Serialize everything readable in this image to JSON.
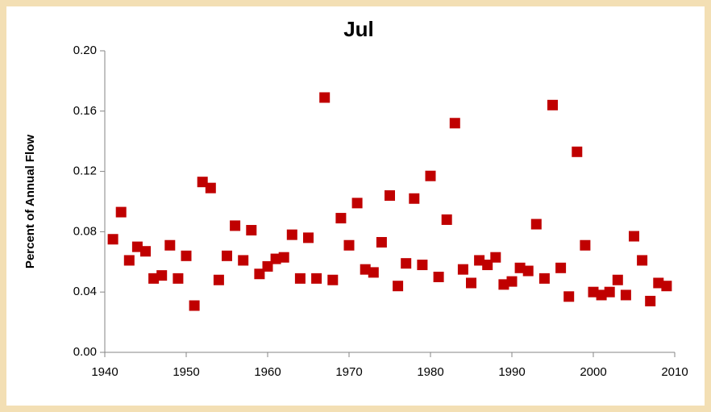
{
  "chart_data": {
    "type": "scatter",
    "title": "Jul",
    "ylabel": "Percent of Annual Flow",
    "series": [
      {
        "name": "Jul",
        "color": "#c00000",
        "x": [
          1941,
          1942,
          1943,
          1944,
          1945,
          1946,
          1947,
          1948,
          1949,
          1950,
          1951,
          1952,
          1953,
          1954,
          1955,
          1956,
          1957,
          1958,
          1959,
          1960,
          1961,
          1962,
          1963,
          1964,
          1965,
          1966,
          1967,
          1968,
          1969,
          1970,
          1971,
          1972,
          1973,
          1974,
          1975,
          1976,
          1977,
          1978,
          1979,
          1980,
          1981,
          1982,
          1983,
          1984,
          1985,
          1986,
          1987,
          1988,
          1989,
          1990,
          1991,
          1992,
          1993,
          1994,
          1995,
          1996,
          1997,
          1998,
          1999,
          2000,
          2001,
          2002,
          2003,
          2004,
          2005,
          2006,
          2007,
          2008,
          2009
        ],
        "values": [
          0.075,
          0.093,
          0.061,
          0.07,
          0.067,
          0.049,
          0.051,
          0.071,
          0.049,
          0.064,
          0.031,
          0.113,
          0.109,
          0.048,
          0.064,
          0.084,
          0.061,
          0.081,
          0.052,
          0.057,
          0.062,
          0.063,
          0.078,
          0.049,
          0.076,
          0.049,
          0.169,
          0.048,
          0.089,
          0.071,
          0.099,
          0.055,
          0.053,
          0.073,
          0.104,
          0.044,
          0.059,
          0.102,
          0.058,
          0.117,
          0.05,
          0.088,
          0.152,
          0.055,
          0.046,
          0.061,
          0.058,
          0.063,
          0.045,
          0.047,
          0.056,
          0.054,
          0.085,
          0.049,
          0.164,
          0.056,
          0.037,
          0.133,
          0.071,
          0.04,
          0.038,
          0.04,
          0.048,
          0.038,
          0.077,
          0.061,
          0.034,
          0.046,
          0.044
        ]
      }
    ],
    "xlim": [
      1940,
      2010
    ],
    "xticks": [
      1940,
      1950,
      1960,
      1970,
      1980,
      1990,
      2000,
      2010
    ],
    "ylim": [
      0,
      0.2
    ],
    "yticks": [
      {
        "value": 0,
        "label": "0.00"
      },
      {
        "value": 0.04,
        "label": "0.04"
      },
      {
        "value": 0.08,
        "label": "0.08"
      },
      {
        "value": 0.12,
        "label": "0.12"
      },
      {
        "value": 0.16,
        "label": "0.16"
      },
      {
        "value": 0.2,
        "label": "0.20"
      }
    ],
    "grid": false
  }
}
